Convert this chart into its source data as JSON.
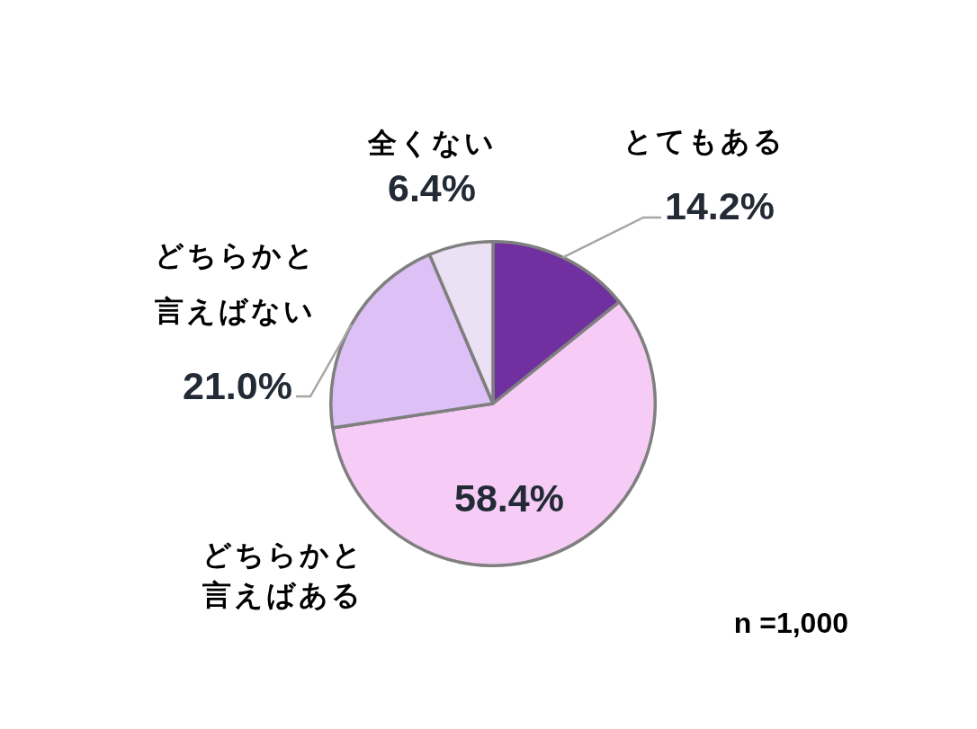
{
  "chart_data": {
    "type": "pie",
    "categories": [
      "とてもある",
      "どちらかと言えばある",
      "どちらかと言えばない",
      "全くない"
    ],
    "values": [
      14.2,
      58.4,
      21.0,
      6.4
    ],
    "colors": [
      "#7030a0",
      "#f6ccf6",
      "#dcc0f6",
      "#ece0f4"
    ],
    "value_labels": [
      "14.2%",
      "58.4%",
      "21.0%",
      "6.4%"
    ],
    "annotations": [
      "n =1,000"
    ]
  }
}
